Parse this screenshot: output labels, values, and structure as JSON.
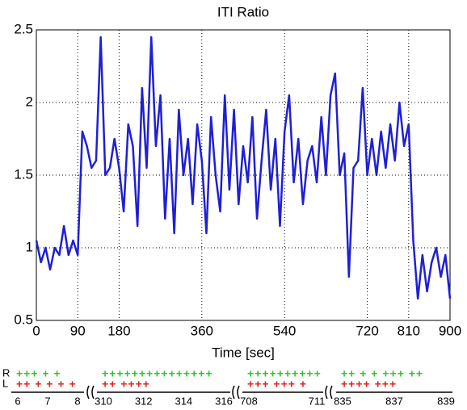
{
  "chart_data": {
    "type": "line",
    "title": "ITI Ratio",
    "x_label": "Time [sec]",
    "x": [
      0,
      10,
      20,
      30,
      40,
      50,
      60,
      70,
      80,
      90,
      100,
      110,
      120,
      130,
      140,
      150,
      160,
      170,
      180,
      190,
      200,
      210,
      220,
      230,
      240,
      250,
      260,
      270,
      280,
      290,
      300,
      310,
      320,
      330,
      340,
      350,
      360,
      370,
      380,
      390,
      400,
      410,
      420,
      430,
      440,
      450,
      460,
      470,
      480,
      490,
      500,
      510,
      520,
      530,
      540,
      550,
      560,
      570,
      580,
      590,
      600,
      610,
      620,
      630,
      640,
      650,
      660,
      670,
      680,
      690,
      700,
      710,
      720,
      730,
      740,
      750,
      760,
      770,
      780,
      790,
      800,
      810,
      820,
      830,
      840,
      850,
      860,
      870,
      880,
      890,
      900
    ],
    "series": [
      {
        "color": "#1f1fd6",
        "values": [
          1.05,
          0.9,
          1.0,
          0.85,
          1.0,
          0.95,
          1.15,
          0.95,
          1.05,
          0.95,
          1.8,
          1.7,
          1.55,
          1.6,
          2.45,
          1.5,
          1.55,
          1.75,
          1.55,
          1.25,
          1.85,
          1.7,
          1.15,
          2.1,
          1.55,
          2.45,
          1.7,
          2.05,
          1.2,
          1.75,
          1.1,
          1.95,
          1.5,
          1.75,
          1.3,
          1.85,
          1.6,
          1.1,
          1.9,
          1.5,
          1.25,
          2.05,
          1.4,
          1.95,
          1.3,
          1.7,
          1.45,
          1.9,
          1.2,
          1.6,
          1.95,
          1.4,
          1.75,
          1.15,
          1.8,
          2.05,
          1.45,
          1.75,
          1.3,
          1.6,
          1.7,
          1.45,
          1.9,
          1.5,
          2.05,
          2.2,
          1.5,
          1.65,
          0.8,
          1.55,
          1.6,
          2.1,
          1.5,
          1.75,
          1.5,
          1.8,
          1.55,
          1.85,
          1.6,
          2.0,
          1.7,
          1.85,
          1.05,
          0.65,
          0.95,
          0.7,
          0.9,
          1.0,
          0.8,
          0.95,
          0.65
        ]
      }
    ],
    "xlim": [
      0,
      900
    ],
    "xticks": [
      0,
      90,
      180,
      360,
      540,
      720,
      810,
      900
    ],
    "ylim": [
      0.5,
      2.5
    ],
    "yticks": [
      0.5,
      1,
      1.5,
      2,
      2.5
    ],
    "grid": true
  },
  "footer": {
    "row_labels": [
      "R",
      "L"
    ],
    "segments": [
      {
        "r": "+++ + +",
        "l": "++ + + + +",
        "ticks": [
          "6",
          "7",
          "8"
        ]
      },
      {
        "r": "+++++++++++++++",
        "l": "++        ++++",
        "ticks": [
          "310",
          "312",
          "314",
          "316"
        ]
      },
      {
        "r": "++++++++++",
        "l": "+++ +++ +",
        "ticks": [
          "708",
          "711"
        ]
      },
      {
        "r": "++ + +  +++ ++",
        "l": "++++     +++",
        "ticks": [
          "835",
          "837",
          "839"
        ]
      }
    ]
  }
}
